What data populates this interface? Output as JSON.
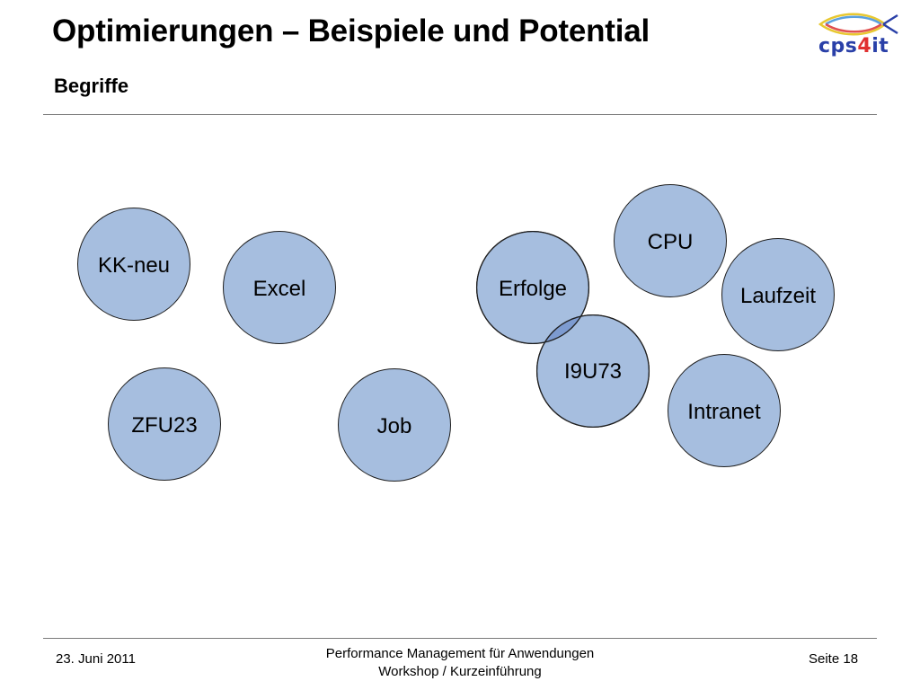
{
  "header": {
    "title": "Optimierungen – Beispiele und Potential",
    "subtitle": "Begriffe"
  },
  "logo": {
    "text_main": "cps",
    "text_accent": "4",
    "text_tail": "it",
    "colors": {
      "main": "#2a40a8",
      "accent": "#e03030"
    }
  },
  "terms": [
    "KK-neu",
    "Excel",
    "ZFU23",
    "Job",
    "Erfolge",
    "CPU",
    "Laufzeit",
    "I9U73",
    "Intranet"
  ],
  "colors": {
    "circle_fill": "#a6bedf",
    "circle_overlap": "#7d9bd0",
    "rule": "#7a7a7a"
  },
  "footer": {
    "date": "23. Juni 2011",
    "center_line1": "Performance Management für Anwendungen",
    "center_line2": "Workshop / Kurzeinführung",
    "page": "Seite 18"
  }
}
